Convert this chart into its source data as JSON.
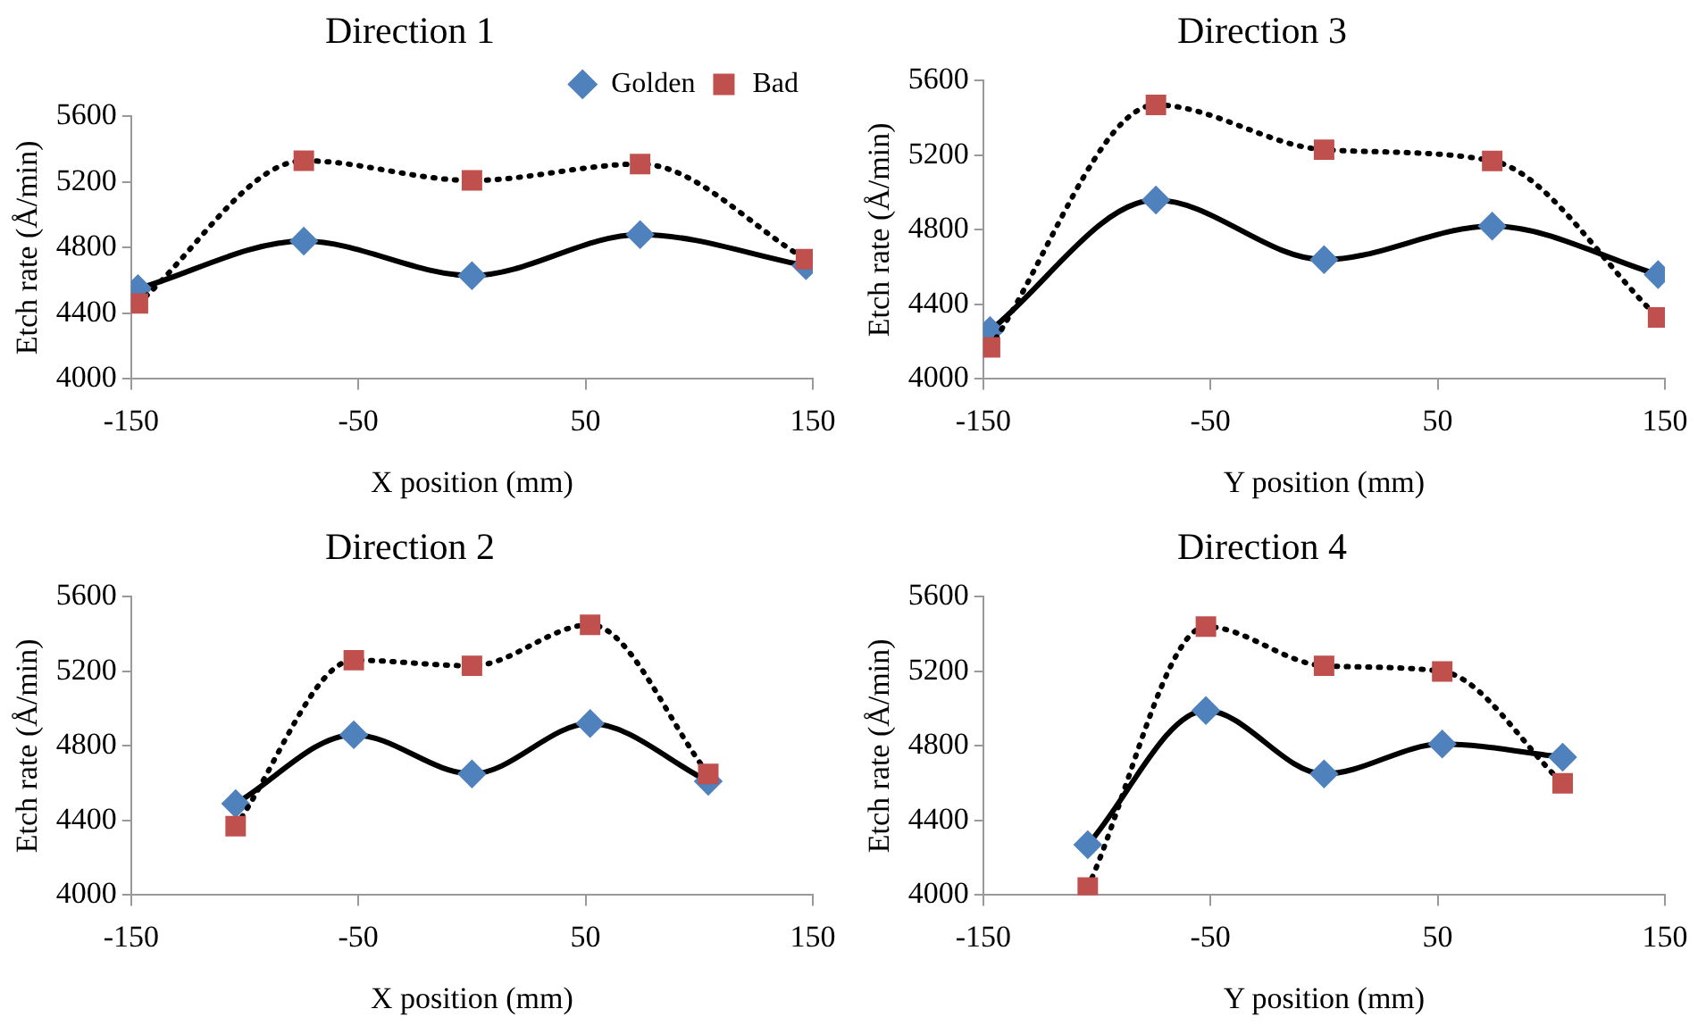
{
  "chart_data": [
    {
      "type": "line",
      "title": "Direction 1",
      "xlabel": "X position (mm)",
      "ylabel": "Etch rate (Å/min)",
      "x": [
        -147,
        -74,
        0,
        74,
        147
      ],
      "xlim": [
        -150,
        150
      ],
      "xticks": [
        -150,
        -50,
        50,
        150
      ],
      "ylim": [
        4000,
        5600
      ],
      "yticks": [
        4000,
        4400,
        4800,
        5200,
        5600
      ],
      "grid": false,
      "legend": "top right",
      "series": [
        {
          "name": "Golden",
          "color": "#4f81bd",
          "marker": "diamond",
          "line_style": "solid",
          "values": [
            4550,
            4840,
            4630,
            4880,
            4690
          ]
        },
        {
          "name": "Bad",
          "color": "#c0504d",
          "marker": "square",
          "line_style": "dotted",
          "values": [
            4460,
            5330,
            5210,
            5310,
            4730
          ]
        }
      ]
    },
    {
      "type": "line",
      "title": "Direction 3",
      "xlabel": "Y position (mm)",
      "ylabel": "Etch rate (Å/min)",
      "x": [
        -147,
        -74,
        0,
        74,
        147
      ],
      "xlim": [
        -150,
        150
      ],
      "xticks": [
        -150,
        -50,
        50,
        150
      ],
      "ylim": [
        4000,
        5600
      ],
      "yticks": [
        4000,
        4400,
        4800,
        5200,
        5600
      ],
      "grid": false,
      "series": [
        {
          "color": "#4f81bd",
          "marker": "diamond",
          "line_style": "solid",
          "values": [
            4260,
            4960,
            4640,
            4820,
            4560
          ]
        },
        {
          "color": "#c0504d",
          "marker": "square",
          "line_style": "dotted",
          "values": [
            4170,
            5470,
            5230,
            5170,
            4330
          ]
        }
      ]
    },
    {
      "type": "line",
      "title": "Direction 2",
      "xlabel": "X position (mm)",
      "ylabel": "Etch rate (Å/min)",
      "x": [
        -104,
        -52,
        0,
        52,
        104
      ],
      "xlim": [
        -150,
        150
      ],
      "xticks": [
        -150,
        -50,
        50,
        150
      ],
      "ylim": [
        4000,
        5600
      ],
      "yticks": [
        4000,
        4400,
        4800,
        5200,
        5600
      ],
      "grid": false,
      "series": [
        {
          "color": "#4f81bd",
          "marker": "diamond",
          "line_style": "solid",
          "values": [
            4490,
            4860,
            4650,
            4920,
            4610
          ]
        },
        {
          "color": "#c0504d",
          "marker": "square",
          "line_style": "dotted",
          "values": [
            4370,
            5260,
            5230,
            5450,
            4650
          ]
        }
      ]
    },
    {
      "type": "line",
      "title": "Direction 4",
      "xlabel": "Y position (mm)",
      "ylabel": "Etch rate (Å/min)",
      "x": [
        -104,
        -52,
        0,
        52,
        105
      ],
      "xlim": [
        -150,
        150
      ],
      "xticks": [
        -150,
        -50,
        50,
        150
      ],
      "ylim": [
        4000,
        5600
      ],
      "yticks": [
        4000,
        4400,
        4800,
        5200,
        5600
      ],
      "grid": false,
      "series": [
        {
          "color": "#4f81bd",
          "marker": "diamond",
          "line_style": "solid",
          "values": [
            4270,
            4990,
            4650,
            4810,
            4740
          ]
        },
        {
          "color": "#c0504d",
          "marker": "square",
          "line_style": "dotted",
          "values": [
            4040,
            5440,
            5230,
            5200,
            4600
          ]
        }
      ]
    }
  ]
}
